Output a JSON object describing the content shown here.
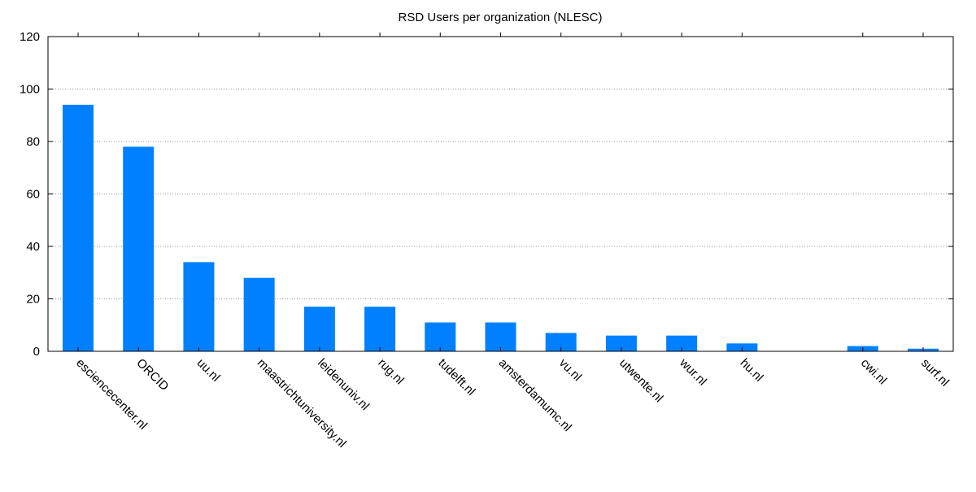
{
  "chart_data": {
    "type": "bar",
    "title": "RSD Users per organization (NLESC)",
    "xlabel": "",
    "ylabel": "",
    "ylim": [
      0,
      120
    ],
    "yticks": [
      "0",
      "20",
      "40",
      "60",
      "80",
      "100",
      "120"
    ],
    "grid": "horizontal dotted",
    "categories": [
      "esciencecenter.nl",
      "ORCID",
      "uu.nl",
      "maastrichtuniversity.nl",
      "leidenuniv.nl",
      "rug.nl",
      "tudelft.nl",
      "amsterdamumc.nl",
      "vu.nl",
      "utwente.nl",
      "wur.nl",
      "hu.nl",
      "",
      "cwi.nl",
      "surf.nl"
    ],
    "values": [
      94,
      78,
      34,
      28,
      17,
      17,
      11,
      11,
      7,
      6,
      6,
      3,
      0,
      2,
      1
    ],
    "bar_color": "#0080ff"
  }
}
